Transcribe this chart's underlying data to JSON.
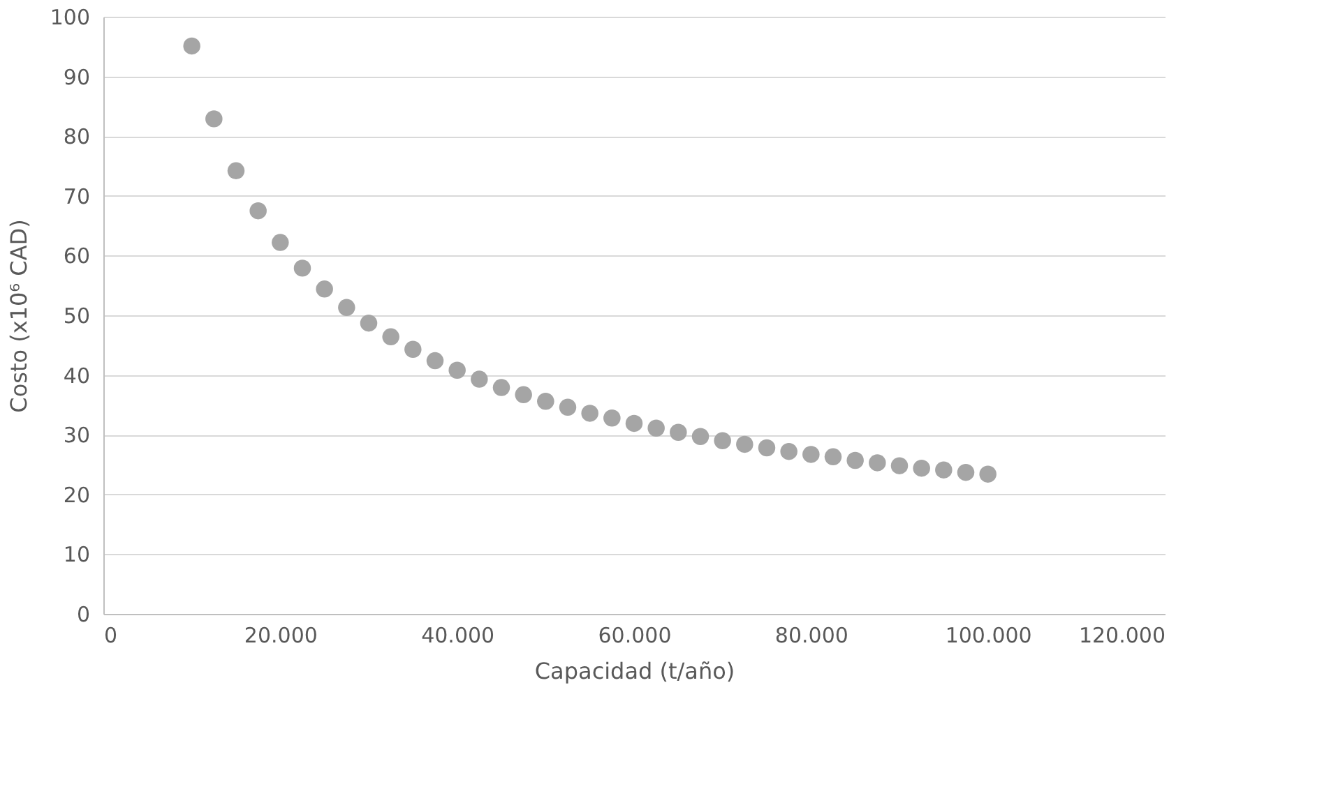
{
  "chart_data": {
    "type": "scatter",
    "xlabel": "Capacidad (t/año)",
    "ylabel": "Costo (x10⁶ CAD)",
    "x": [
      10000,
      12500,
      15000,
      17500,
      20000,
      22500,
      25000,
      27500,
      30000,
      32500,
      35000,
      37500,
      40000,
      42500,
      45000,
      47500,
      50000,
      52500,
      55000,
      57500,
      60000,
      62500,
      65000,
      67500,
      70000,
      72500,
      75000,
      77500,
      80000,
      82500,
      85000,
      87500,
      90000,
      92500,
      95000,
      97500,
      100000
    ],
    "series": [
      {
        "color": "#a5a5a5",
        "values": [
          95.1,
          82.9,
          74.2,
          67.5,
          62.2,
          57.9,
          54.4,
          51.3,
          48.7,
          46.4,
          44.3,
          42.4,
          40.8,
          39.3,
          37.9,
          36.7,
          35.6,
          34.6,
          33.6,
          32.8,
          31.9,
          31.1,
          30.4,
          29.7,
          29.0,
          28.4,
          27.8,
          27.2,
          26.7,
          26.3,
          25.7,
          25.3,
          24.8,
          24.4,
          24.1,
          23.7,
          23.4
        ]
      }
    ],
    "xlim": [
      0,
      120000
    ],
    "xticks": [
      0,
      {
        "value": 20000,
        "label": "20.000"
      },
      {
        "value": 40000,
        "label": "40.000"
      },
      {
        "value": 60000,
        "label": "60.000"
      },
      {
        "value": 80000,
        "label": "80.000"
      },
      {
        "value": 100000,
        "label": "100.000"
      },
      {
        "value": 120000,
        "label": "120.000"
      }
    ],
    "ylim": [
      0,
      100
    ],
    "yticks": [
      0,
      10,
      20,
      30,
      40,
      50,
      60,
      70,
      80,
      90,
      100
    ],
    "grid": "y",
    "marker": "circle",
    "legend": false
  }
}
